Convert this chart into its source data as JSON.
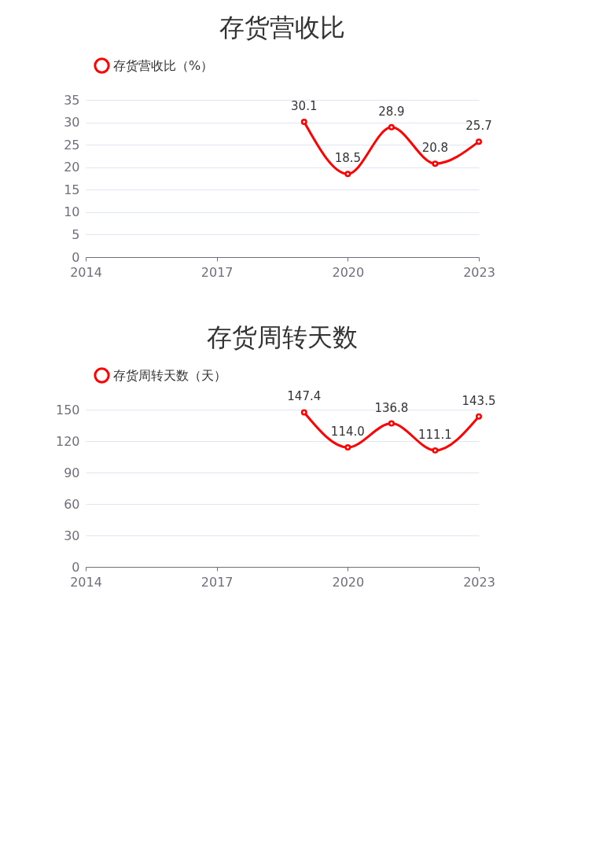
{
  "chart_data": [
    {
      "type": "line",
      "title": "存货营收比",
      "x": [
        2019,
        2020,
        2021,
        2022,
        2023
      ],
      "series": [
        {
          "name": "存货营收比（%）",
          "color": "#ff0000",
          "values": [
            30.1,
            18.5,
            28.9,
            20.8,
            25.7
          ]
        }
      ],
      "xlim": [
        2014,
        2023
      ],
      "xticks": [
        2014,
        2017,
        2020,
        2023
      ],
      "ylim": [
        0,
        35
      ],
      "yticks": [
        0,
        5,
        10,
        15,
        20,
        25,
        30,
        35
      ],
      "grid": "y",
      "legend": "top",
      "marker": "circle",
      "line_style": "solid",
      "data_labels": true
    },
    {
      "type": "line",
      "title": "存货周转天数",
      "x": [
        2019,
        2020,
        2021,
        2022,
        2023
      ],
      "series": [
        {
          "name": "存货周转天数（天）",
          "color": "#ff0000",
          "values": [
            147.4,
            114.0,
            136.8,
            111.1,
            143.5
          ]
        }
      ],
      "xlim": [
        2014,
        2023
      ],
      "xticks": [
        2014,
        2017,
        2020,
        2023
      ],
      "ylim": [
        0,
        150
      ],
      "yticks": [
        0,
        30,
        60,
        90,
        120,
        150
      ],
      "grid": "y",
      "legend": "top",
      "marker": "circle",
      "line_style": "solid",
      "value_labels": [
        "147.4",
        "114.0",
        "136.8",
        "111.1",
        "143.5"
      ]
    }
  ]
}
